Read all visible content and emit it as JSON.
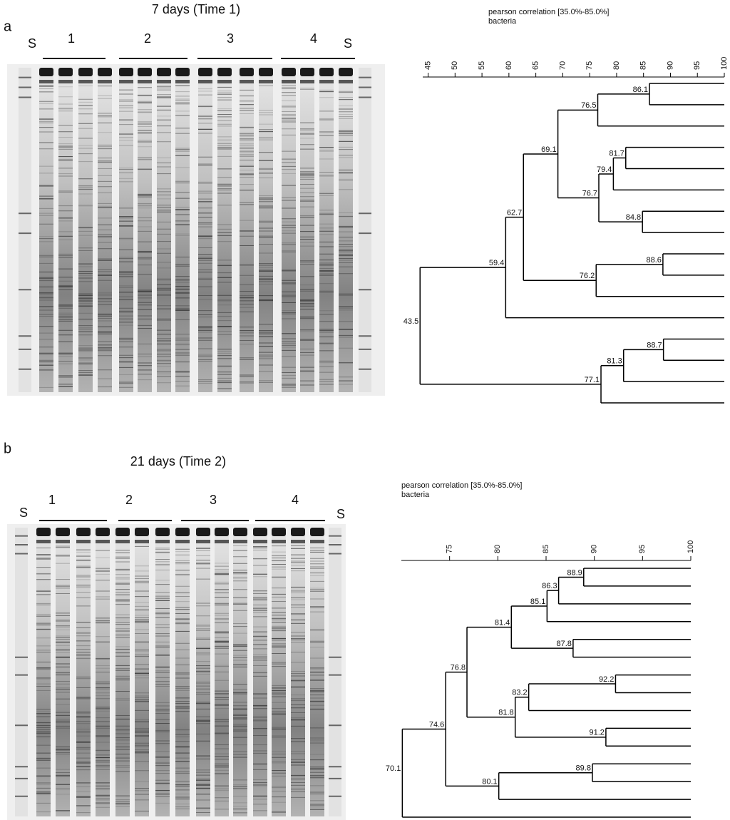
{
  "panels": [
    {
      "letter": "a",
      "title": "7 days (Time 1)",
      "standard_labels": [
        "S",
        "S"
      ],
      "group_labels": [
        "1",
        "2",
        "3",
        "4"
      ]
    },
    {
      "letter": "b",
      "title": "21 days (Time 2)",
      "standard_labels": [
        "S",
        "S"
      ],
      "group_labels": [
        "1",
        "2",
        "3",
        "4"
      ]
    }
  ],
  "chart_data": [
    {
      "type": "dendrogram",
      "title": "pearson correlation [35.0%-85.0%]",
      "subtitle": "bacteria",
      "xlim": [
        44,
        100
      ],
      "xticks": [
        45,
        50,
        55,
        60,
        65,
        70,
        75,
        80,
        85,
        90,
        95,
        100
      ],
      "tree": {
        "value": 43.5,
        "children": [
          {
            "value": 59.4,
            "children": [
              {
                "value": 62.7,
                "children": [
                  {
                    "value": 69.1,
                    "children": [
                      {
                        "value": 76.5,
                        "children": [
                          {
                            "value": 86.1,
                            "children": [
                              {},
                              {}
                            ]
                          },
                          {}
                        ]
                      },
                      {
                        "value": 76.7,
                        "children": [
                          {
                            "value": 79.4,
                            "children": [
                              {
                                "value": 81.7,
                                "children": [
                                  {},
                                  {}
                                ]
                              },
                              {}
                            ]
                          },
                          {
                            "value": 84.8,
                            "children": [
                              {},
                              {}
                            ]
                          }
                        ]
                      }
                    ]
                  },
                  {
                    "value": 76.2,
                    "children": [
                      {
                        "value": 88.6,
                        "children": [
                          {},
                          {}
                        ]
                      },
                      {}
                    ]
                  }
                ]
              },
              {}
            ]
          },
          {
            "value": 77.1,
            "children": [
              {
                "value": 81.3,
                "children": [
                  {
                    "value": 88.7,
                    "children": [
                      {},
                      {}
                    ]
                  },
                  {}
                ]
              },
              {}
            ]
          }
        ]
      }
    },
    {
      "type": "dendrogram",
      "title": "pearson correlation [35.0%-85.0%]",
      "subtitle": "bacteria",
      "xlim": [
        70,
        100
      ],
      "xticks": [
        75,
        80,
        85,
        90,
        95,
        100
      ],
      "tree": {
        "value": 70.1,
        "children": [
          {
            "value": 74.6,
            "children": [
              {
                "value": 76.8,
                "children": [
                  {
                    "value": 81.4,
                    "children": [
                      {
                        "value": 85.1,
                        "children": [
                          {
                            "value": 86.3,
                            "children": [
                              {
                                "value": 88.9,
                                "children": [
                                  {},
                                  {}
                                ]
                              },
                              {}
                            ]
                          },
                          {}
                        ]
                      },
                      {
                        "value": 87.8,
                        "children": [
                          {},
                          {}
                        ]
                      }
                    ]
                  },
                  {
                    "value": 81.8,
                    "children": [
                      {
                        "value": 83.2,
                        "children": [
                          {
                            "value": 92.2,
                            "children": [
                              {},
                              {}
                            ]
                          },
                          {}
                        ]
                      },
                      {
                        "value": 91.2,
                        "children": [
                          {},
                          {}
                        ]
                      }
                    ]
                  }
                ]
              },
              {
                "value": 80.1,
                "children": [
                  {
                    "value": 89.8,
                    "children": [
                      {},
                      {}
                    ]
                  },
                  {}
                ]
              }
            ]
          },
          {}
        ]
      }
    }
  ]
}
